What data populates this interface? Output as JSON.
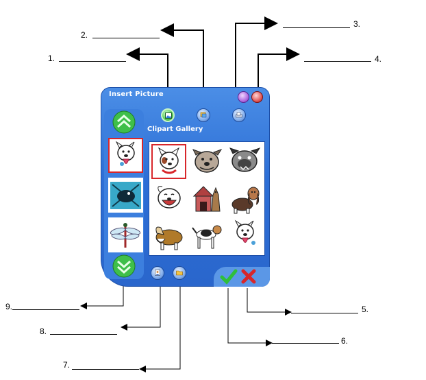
{
  "callouts": [
    {
      "number": "1."
    },
    {
      "number": "2."
    },
    {
      "number": "3."
    },
    {
      "number": "4."
    },
    {
      "number": "5."
    },
    {
      "number": "6."
    },
    {
      "number": "7."
    },
    {
      "number": "8."
    },
    {
      "number": "9."
    }
  ],
  "window": {
    "title": "Insert Picture",
    "gallery_title": "Clipart Gallery"
  },
  "colors": {
    "window_blue": "#2d6fd6",
    "accent_green": "#2fbf3a",
    "cancel_red": "#d8262a",
    "selection_red": "#d8262a"
  },
  "icons": {
    "toolbar": [
      "clipart-gallery-icon",
      "my-pictures-icon",
      "scan-picture-icon"
    ],
    "title_bar": [
      "help-icon",
      "close-icon"
    ],
    "bottom": [
      "insert-from-file-icon",
      "folder-icon",
      "checkmark-icon",
      "cross-icon"
    ],
    "side": [
      "scroll-up-icon",
      "scroll-down-icon"
    ]
  },
  "thumbnails": [
    "dog-tongue-thumb",
    "bird-thumb",
    "dragonfly-thumb"
  ],
  "gallery_items": [
    "terrier-dog",
    "bulldog-face",
    "pug-face",
    "laughing-dog",
    "dog-house",
    "basset-hound",
    "collie",
    "beagle",
    "dog-tongue"
  ]
}
